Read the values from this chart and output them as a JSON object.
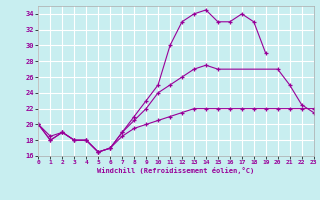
{
  "xlabel": "Windchill (Refroidissement éolien,°C)",
  "background_color": "#c8eef0",
  "line_color": "#990099",
  "grid_color": "#ffffff",
  "xlim": [
    0,
    23
  ],
  "ylim": [
    16,
    35
  ],
  "xticks": [
    0,
    1,
    2,
    3,
    4,
    5,
    6,
    7,
    8,
    9,
    10,
    11,
    12,
    13,
    14,
    15,
    16,
    17,
    18,
    19,
    20,
    21,
    22,
    23
  ],
  "yticks": [
    16,
    18,
    20,
    22,
    24,
    26,
    28,
    30,
    32,
    34
  ],
  "line1_x": [
    0,
    1,
    2,
    3,
    4,
    5,
    6,
    7,
    8,
    9,
    10,
    11,
    12,
    13,
    14,
    15,
    16,
    17,
    18,
    19
  ],
  "line1_y": [
    20,
    18,
    19,
    18,
    18,
    16.5,
    17,
    19,
    21,
    23,
    25,
    30,
    33,
    34,
    34.5,
    33,
    33,
    34,
    33,
    29
  ],
  "line2_x": [
    0,
    1,
    2,
    3,
    4,
    5,
    6,
    7,
    8,
    9,
    10,
    11,
    12,
    13,
    14,
    15,
    20,
    21,
    22,
    23
  ],
  "line2_y": [
    20,
    18,
    19,
    18,
    18,
    16.5,
    17,
    19,
    20.5,
    22,
    24,
    25,
    26,
    27,
    27.5,
    27,
    27,
    25,
    22.5,
    21.5
  ],
  "line3_x": [
    0,
    1,
    2,
    3,
    4,
    5,
    6,
    7,
    8,
    9,
    10,
    11,
    12,
    13,
    14,
    15,
    16,
    17,
    18,
    19,
    20,
    21,
    22,
    23
  ],
  "line3_y": [
    20,
    18.5,
    19,
    18,
    18,
    16.5,
    17,
    18.5,
    19.5,
    20,
    20.5,
    21,
    21.5,
    22,
    22,
    22,
    22,
    22,
    22,
    22,
    22,
    22,
    22,
    22
  ]
}
